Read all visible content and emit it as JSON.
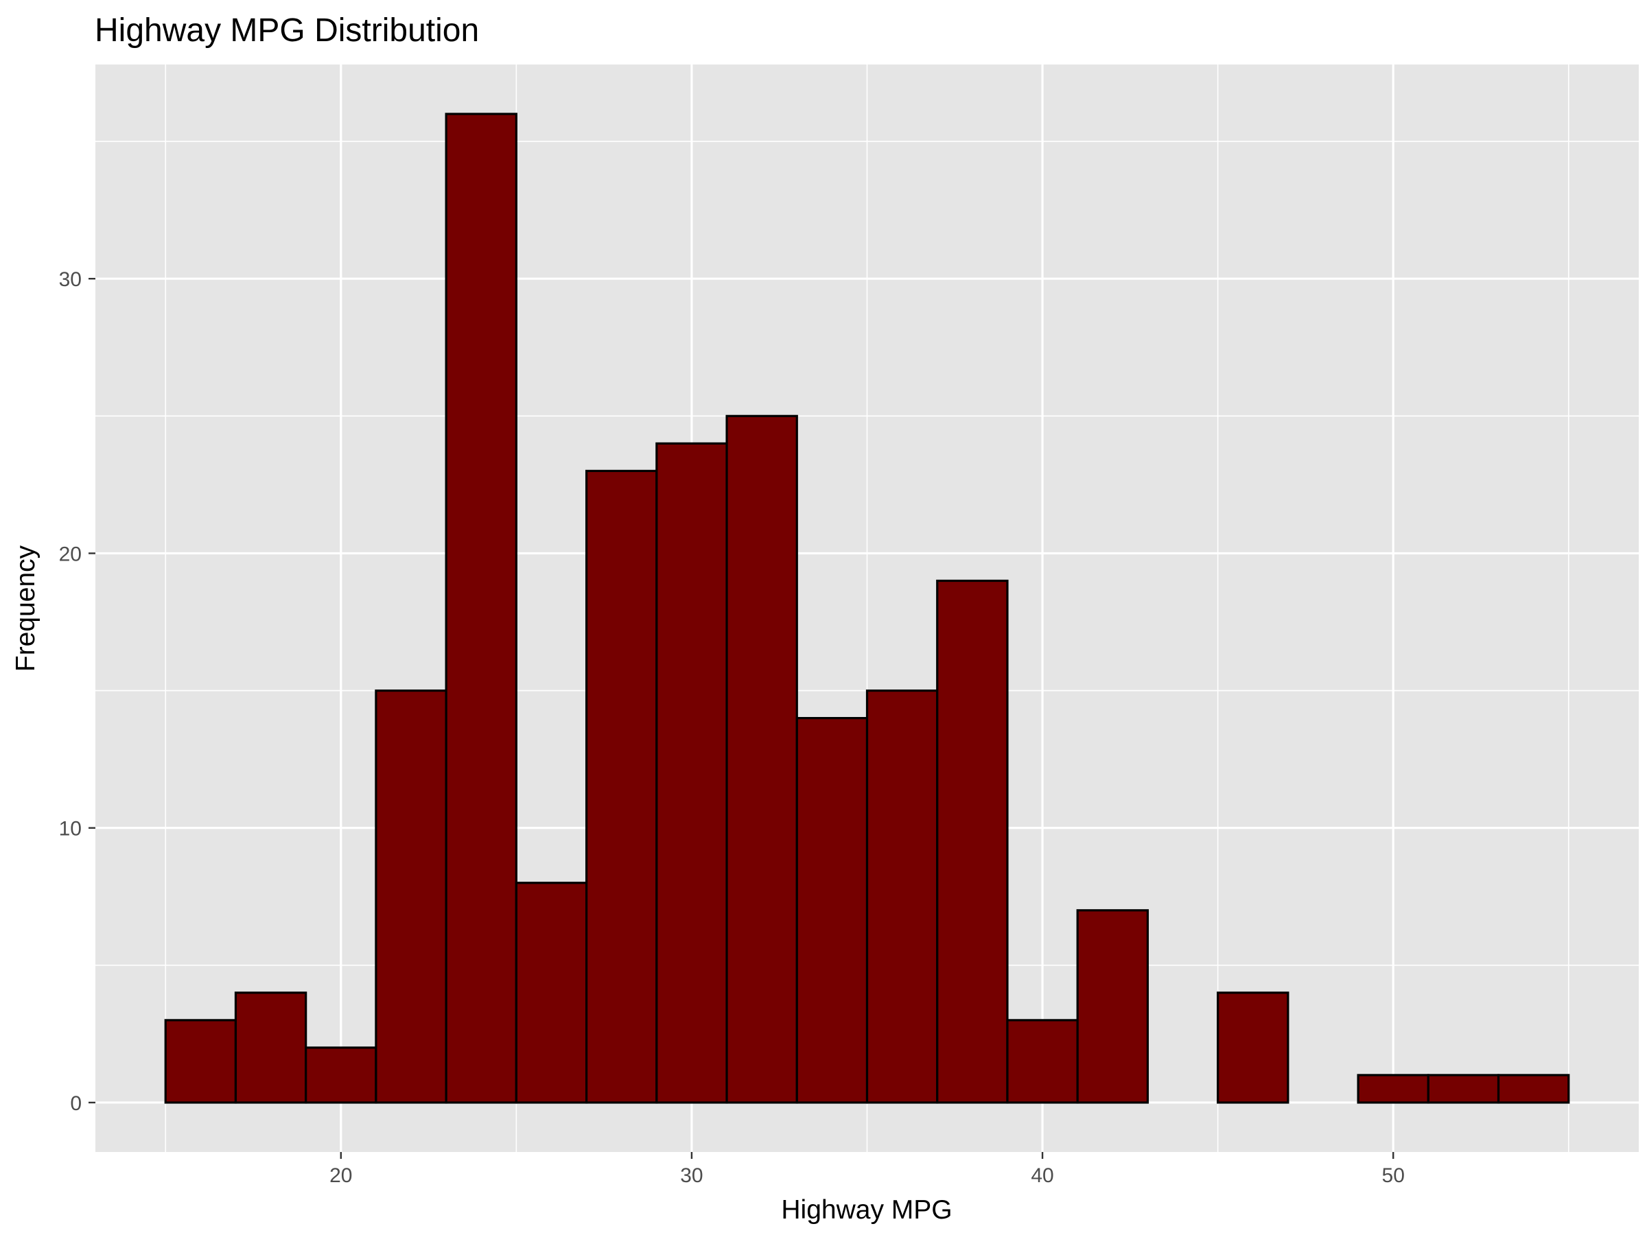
{
  "chart_data": {
    "type": "bar",
    "title": "Highway MPG Distribution",
    "xlabel": "Highway MPG",
    "ylabel": "Frequency",
    "bin_width": 2,
    "bins": [
      {
        "start": 15,
        "end": 17,
        "count": 3
      },
      {
        "start": 17,
        "end": 19,
        "count": 4
      },
      {
        "start": 19,
        "end": 21,
        "count": 2
      },
      {
        "start": 21,
        "end": 23,
        "count": 15
      },
      {
        "start": 23,
        "end": 25,
        "count": 36
      },
      {
        "start": 25,
        "end": 27,
        "count": 8
      },
      {
        "start": 27,
        "end": 29,
        "count": 23
      },
      {
        "start": 29,
        "end": 31,
        "count": 24
      },
      {
        "start": 31,
        "end": 33,
        "count": 25
      },
      {
        "start": 33,
        "end": 35,
        "count": 14
      },
      {
        "start": 35,
        "end": 37,
        "count": 15
      },
      {
        "start": 37,
        "end": 39,
        "count": 19
      },
      {
        "start": 39,
        "end": 41,
        "count": 3
      },
      {
        "start": 41,
        "end": 43,
        "count": 7
      },
      {
        "start": 43,
        "end": 45,
        "count": 0
      },
      {
        "start": 45,
        "end": 47,
        "count": 4
      },
      {
        "start": 47,
        "end": 49,
        "count": 0
      },
      {
        "start": 49,
        "end": 51,
        "count": 1
      },
      {
        "start": 51,
        "end": 53,
        "count": 1
      },
      {
        "start": 53,
        "end": 55,
        "count": 1
      }
    ],
    "xlim": [
      13,
      57
    ],
    "ylim": [
      -1.8,
      37.8
    ],
    "x_ticks": [
      20,
      30,
      40,
      50
    ],
    "x_minor_ticks": [
      15,
      25,
      35,
      45,
      55
    ],
    "y_ticks": [
      0,
      10,
      20,
      30
    ],
    "y_minor_ticks": [
      5,
      15,
      25,
      35
    ],
    "grid": true,
    "colors": {
      "bar_fill": "#750000",
      "bar_stroke": "#000000",
      "panel_background": "#e5e5e5",
      "grid_line": "#ffffff"
    }
  }
}
